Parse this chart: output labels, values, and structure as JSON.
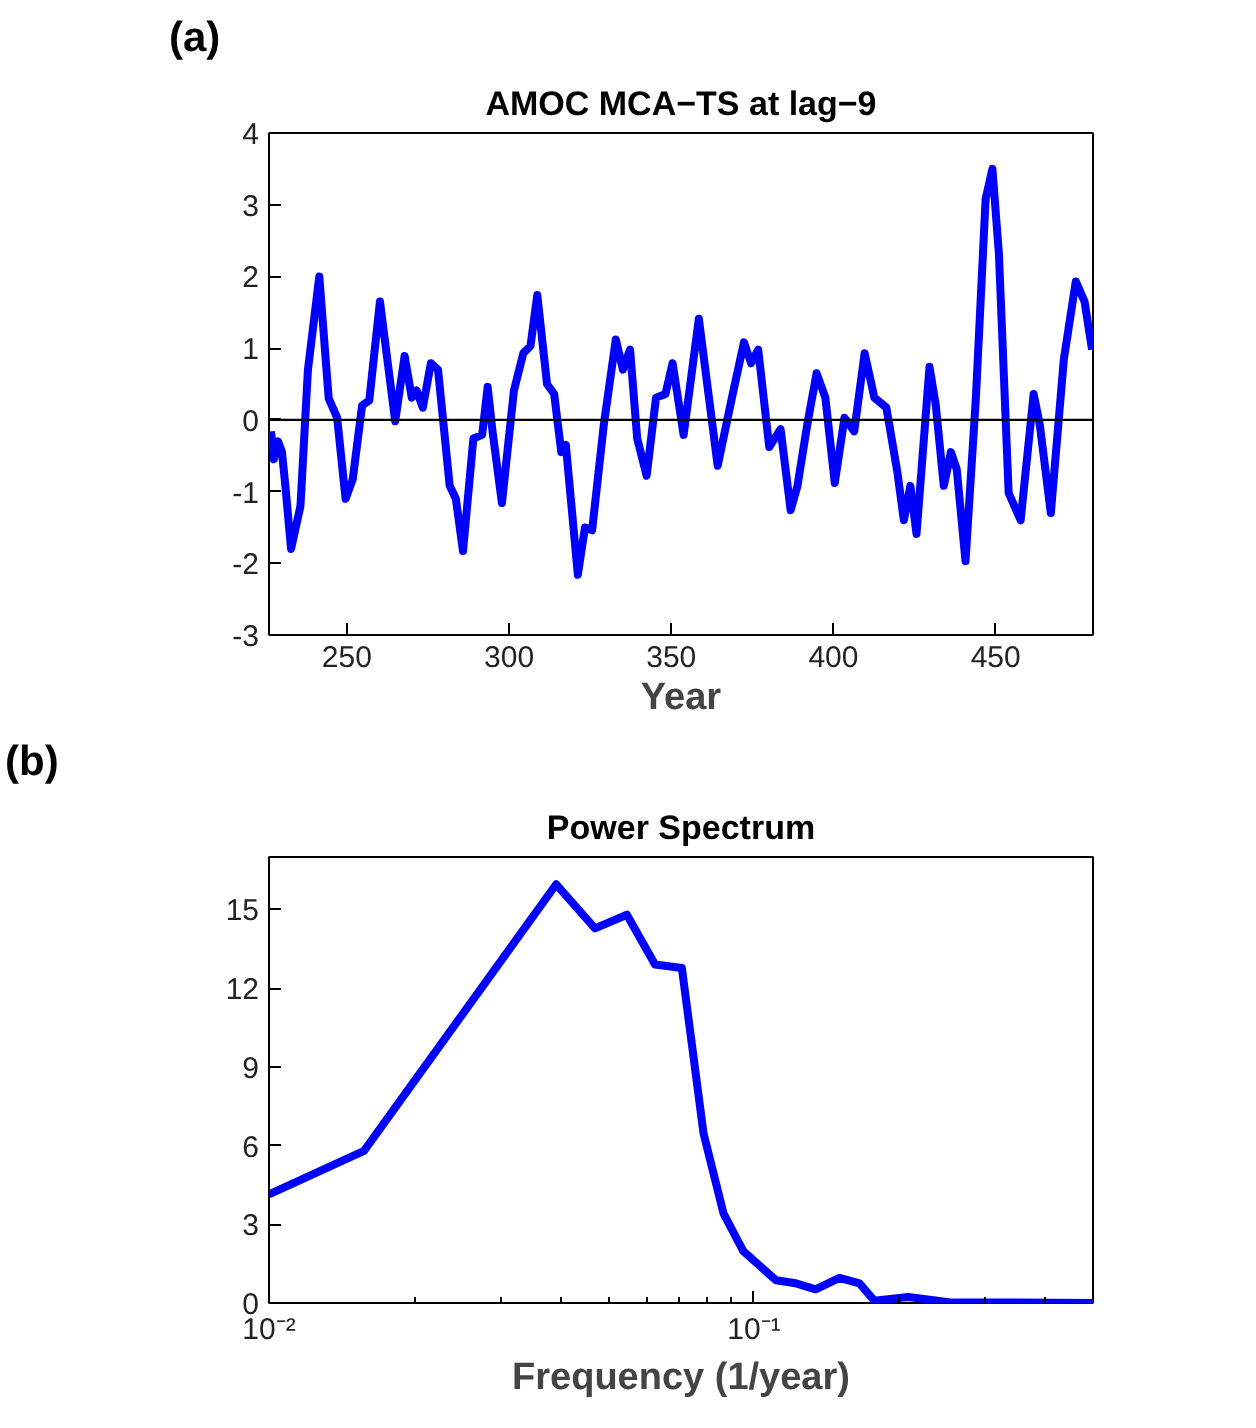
{
  "chart_data": [
    {
      "type": "line",
      "title": "AMOC MCA−TS at lag−9",
      "xlabel": "Year",
      "annotations": [
        "(a)"
      ],
      "grid": false,
      "x": [
        226.6,
        227.5,
        228.8,
        230.0,
        231.0,
        232.8,
        235.7,
        238.0,
        241.5,
        244.4,
        247.0,
        249.6,
        251.8,
        254.7,
        256.9,
        260.2,
        264.9,
        267.8,
        270.0,
        271.5,
        273.4,
        275.9,
        278.1,
        281.7,
        283.6,
        285.8,
        289.0,
        291.7,
        293.4,
        294.9,
        297.8,
        301.5,
        304.4,
        306.6,
        308.7,
        311.7,
        313.9,
        316.1,
        317.5,
        321.2,
        323.4,
        325.6,
        329.2,
        332.9,
        335.1,
        337.3,
        339.5,
        342.4,
        345.3,
        348.2,
        350.4,
        353.8,
        358.5,
        364.3,
        368.7,
        372.4,
        374.6,
        376.8,
        380.2,
        383.7,
        386.8,
        388.9,
        391.9,
        394.8,
        397.5,
        400.4,
        403.4,
        406.4,
        409.6,
        412.6,
        416.3,
        419.7,
        421.7,
        423.7,
        425.6,
        429.6,
        431.5,
        434.0,
        436.2,
        438.0,
        440.7,
        443.9,
        446.9,
        449.0,
        451.0,
        454.0,
        457.7,
        461.7,
        463.6,
        467.0,
        471.0,
        474.7,
        477.4,
        479.7
      ],
      "series": [
        {
          "color": "#0000ff",
          "values": [
            -0.16,
            -0.55,
            -0.3,
            -0.45,
            -0.9,
            -1.8,
            -1.2,
            0.7,
            2.0,
            0.3,
            0.03,
            -1.1,
            -0.83,
            0.2,
            0.27,
            1.65,
            -0.02,
            0.89,
            0.31,
            0.41,
            0.17,
            0.79,
            0.7,
            -0.92,
            -1.1,
            -1.83,
            -0.26,
            -0.21,
            0.46,
            -0.16,
            -1.16,
            0.41,
            0.93,
            1.03,
            1.74,
            0.5,
            0.36,
            -0.45,
            -0.35,
            -2.16,
            -1.5,
            -1.54,
            -0.07,
            1.12,
            0.7,
            0.98,
            -0.26,
            -0.78,
            0.31,
            0.36,
            0.79,
            -0.21,
            1.41,
            -0.64,
            0.31,
            1.08,
            0.79,
            0.98,
            -0.38,
            -0.13,
            -1.26,
            -0.92,
            -0.07,
            0.65,
            0.31,
            -0.88,
            0.03,
            -0.16,
            0.93,
            0.31,
            0.17,
            -0.73,
            -1.4,
            -0.92,
            -1.59,
            0.74,
            0.22,
            -0.92,
            -0.45,
            -0.69,
            -1.97,
            0.31,
            3.08,
            3.5,
            2.31,
            -1.02,
            -1.4,
            0.36,
            -0.07,
            -1.3,
            0.84,
            1.93,
            1.65,
            0.98
          ]
        }
      ],
      "xlim": [
        226,
        480
      ],
      "ylim": [
        -3,
        4
      ],
      "xticks": [
        250,
        300,
        350,
        400,
        450
      ],
      "yticks": [
        -3,
        -2,
        -1,
        0,
        1,
        2,
        3,
        4
      ],
      "ref_lines": [
        {
          "axis": "y",
          "value": 0,
          "color": "#000000"
        }
      ]
    },
    {
      "type": "line",
      "title": "Power Spectrum",
      "xlabel": "Frequency (1/year)",
      "annotations": [
        "(b)"
      ],
      "grid": false,
      "log": "x",
      "x": [
        0.01,
        0.0157,
        0.0391,
        0.047,
        0.0547,
        0.0625,
        0.071,
        0.0787,
        0.0865,
        0.0951,
        0.111,
        0.122,
        0.134,
        0.15,
        0.165,
        0.177,
        0.208,
        0.252,
        0.5
      ],
      "series": [
        {
          "color": "#0000ff",
          "values": [
            4.14,
            5.8,
            15.96,
            14.28,
            14.8,
            12.9,
            12.77,
            6.46,
            3.42,
            1.97,
            0.87,
            0.75,
            0.52,
            0.96,
            0.75,
            0.09,
            0.23,
            0.03,
            0
          ]
        }
      ],
      "xlim": [
        0.01,
        0.5
      ],
      "ylim": [
        0,
        17
      ],
      "xticks": [
        {
          "value": 0.01,
          "label": "10⁻²"
        },
        {
          "value": 0.02,
          "label": null
        },
        {
          "value": 0.03,
          "label": null
        },
        {
          "value": 0.04,
          "label": null
        },
        {
          "value": 0.05,
          "label": null
        },
        {
          "value": 0.06,
          "label": null
        },
        {
          "value": 0.07,
          "label": null
        },
        {
          "value": 0.08,
          "label": null
        },
        {
          "value": 0.09,
          "label": null
        },
        {
          "value": 0.1,
          "label": "10⁻¹"
        },
        {
          "value": 0.2,
          "label": null
        },
        {
          "value": 0.3,
          "label": null
        },
        {
          "value": 0.4,
          "label": null
        }
      ],
      "yticks": [
        0,
        3,
        6,
        9,
        12,
        15
      ]
    }
  ]
}
